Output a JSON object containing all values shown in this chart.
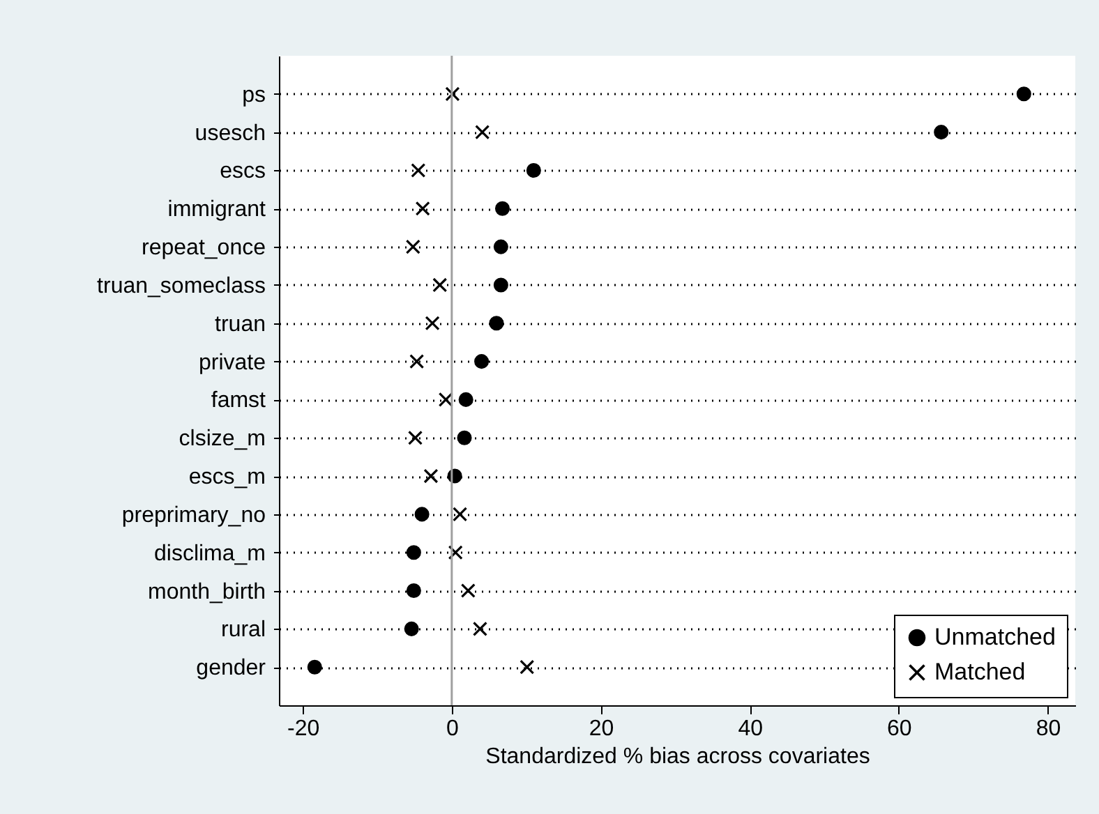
{
  "chart_data": {
    "type": "scatter",
    "xlabel": "Standardized % bias across covariates",
    "categories": [
      "ps",
      "usesch",
      "escs",
      "immigrant",
      "repeat_once",
      "truan_someclass",
      "truan",
      "private",
      "famst",
      "clsize_m",
      "escs_m",
      "preprimary_no",
      "disclima_m",
      "month_birth",
      "rural",
      "gender"
    ],
    "orientation": "horizontal",
    "series": [
      {
        "name": "Unmatched",
        "color": "#000000",
        "marker": "circle",
        "values": [
          76.8,
          65.7,
          11.0,
          6.8,
          6.6,
          6.6,
          6.0,
          4.0,
          1.9,
          1.7,
          0.4,
          -4.0,
          -5.1,
          -5.1,
          -5.4,
          -18.4
        ]
      },
      {
        "name": "Matched",
        "color": "#000000",
        "marker": "cross",
        "values": [
          0.1,
          4.1,
          -4.5,
          -3.9,
          -5.2,
          -1.6,
          -2.6,
          -4.7,
          -0.8,
          -4.9,
          -2.8,
          1.1,
          0.5,
          2.2,
          3.8,
          10.1
        ]
      }
    ],
    "xlim": [
      -23.2,
      83.7
    ],
    "xticks": [
      -20,
      0,
      20,
      40,
      60,
      80
    ],
    "grid": "y",
    "legend": "bottom right",
    "ref_lines": [
      {
        "axis": "x",
        "value": 0,
        "color": "#a0a0a0"
      }
    ]
  }
}
